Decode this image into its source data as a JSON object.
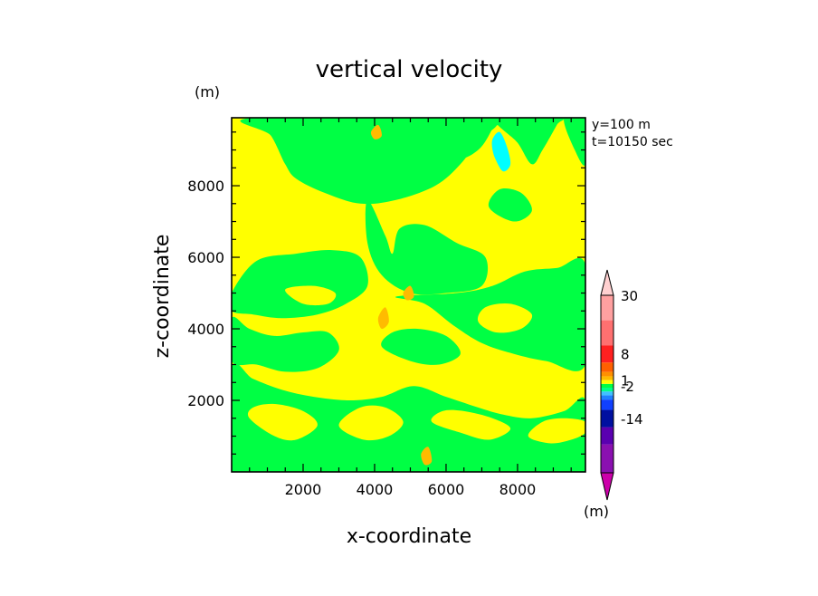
{
  "chart_data": {
    "type": "contour",
    "title": "vertical velocity",
    "xlabel": "x-coordinate",
    "ylabel": "z-coordinate",
    "y_unit": "(m)",
    "colorbar_unit": "(m)",
    "annotations": [
      "y=100 m",
      "t=10150 sec"
    ],
    "xlim": [
      0,
      9900
    ],
    "ylim": [
      0,
      9900
    ],
    "xticks": [
      2000,
      4000,
      6000,
      8000
    ],
    "yticks": [
      2000,
      4000,
      6000,
      8000
    ],
    "background_color": "#ffff00",
    "regions": [
      {
        "color": "#00ff44",
        "points": [
          [
            600,
            9900
          ],
          [
            1100,
            9400
          ],
          [
            1500,
            8600
          ],
          [
            1800,
            8200
          ],
          [
            2600,
            7800
          ],
          [
            3600,
            7500
          ],
          [
            4600,
            7600
          ],
          [
            5700,
            8000
          ],
          [
            6400,
            8600
          ],
          [
            6800,
            9200
          ],
          [
            7000,
            9900
          ]
        ]
      },
      {
        "color": "#00ff44",
        "points": [
          [
            2400,
            9900
          ],
          [
            3500,
            9200
          ],
          [
            5000,
            8800
          ],
          [
            6200,
            8700
          ],
          [
            6900,
            9000
          ],
          [
            7300,
            9600
          ],
          [
            7400,
            9900
          ]
        ]
      },
      {
        "color": "#00ff44",
        "points": [
          [
            3800,
            7600
          ],
          [
            4300,
            6600
          ],
          [
            4500,
            6100
          ],
          [
            4700,
            6800
          ],
          [
            5400,
            6900
          ],
          [
            6300,
            6400
          ],
          [
            7100,
            6000
          ],
          [
            7000,
            5200
          ],
          [
            6000,
            5000
          ],
          [
            5000,
            5000
          ],
          [
            4200,
            5500
          ],
          [
            3800,
            6400
          ]
        ]
      },
      {
        "color": "#00ff44",
        "points": [
          [
            0,
            5000
          ],
          [
            700,
            5900
          ],
          [
            1800,
            6100
          ],
          [
            2800,
            6200
          ],
          [
            3600,
            6000
          ],
          [
            3800,
            5200
          ],
          [
            3200,
            4700
          ],
          [
            2400,
            4400
          ],
          [
            1400,
            4300
          ],
          [
            600,
            4400
          ],
          [
            0,
            4500
          ]
        ]
      },
      {
        "color": "#00ff44",
        "points": [
          [
            0,
            4300
          ],
          [
            500,
            4000
          ],
          [
            1200,
            3800
          ],
          [
            2000,
            3900
          ],
          [
            2700,
            3900
          ],
          [
            3000,
            3400
          ],
          [
            2400,
            2900
          ],
          [
            1500,
            2800
          ],
          [
            700,
            3000
          ],
          [
            0,
            3100
          ]
        ]
      },
      {
        "color": "#00ff44",
        "points": [
          [
            0,
            2900
          ],
          [
            600,
            2600
          ],
          [
            1400,
            2300
          ],
          [
            2300,
            2100
          ],
          [
            3300,
            2000
          ],
          [
            4200,
            2100
          ],
          [
            5100,
            2400
          ],
          [
            6000,
            2100
          ],
          [
            6900,
            1800
          ],
          [
            7600,
            1600
          ],
          [
            8400,
            1500
          ],
          [
            9300,
            1700
          ],
          [
            9900,
            2000
          ],
          [
            9900,
            0
          ],
          [
            0,
            0
          ]
        ]
      },
      {
        "color": "#00ff44",
        "points": [
          [
            4600,
            4900
          ],
          [
            5400,
            4700
          ],
          [
            6200,
            4100
          ],
          [
            7000,
            3600
          ],
          [
            7900,
            3300
          ],
          [
            8800,
            3100
          ],
          [
            9900,
            3000
          ],
          [
            9900,
            5800
          ],
          [
            9100,
            5700
          ],
          [
            8200,
            5600
          ],
          [
            7300,
            5200
          ],
          [
            6300,
            5000
          ]
        ]
      },
      {
        "color": "#00ff44",
        "points": [
          [
            4200,
            3500
          ],
          [
            5000,
            3100
          ],
          [
            5800,
            3000
          ],
          [
            6400,
            3300
          ],
          [
            6000,
            3800
          ],
          [
            5200,
            4000
          ],
          [
            4500,
            3900
          ]
        ]
      },
      {
        "color": "#00ff44",
        "points": [
          [
            7400,
            9900
          ],
          [
            8000,
            9200
          ],
          [
            8400,
            8600
          ],
          [
            8700,
            9000
          ],
          [
            9100,
            9700
          ],
          [
            9200,
            9900
          ]
        ]
      },
      {
        "color": "#00ff44",
        "points": [
          [
            9300,
            9900
          ],
          [
            9600,
            9000
          ],
          [
            9900,
            8600
          ],
          [
            9900,
            9900
          ]
        ]
      },
      {
        "color": "#ffff00",
        "points": [
          [
            500,
            1500
          ],
          [
            1200,
            1000
          ],
          [
            1800,
            900
          ],
          [
            2400,
            1300
          ],
          [
            2000,
            1700
          ],
          [
            1200,
            1900
          ],
          [
            600,
            1800
          ]
        ]
      },
      {
        "color": "#ffff00",
        "points": [
          [
            3000,
            1300
          ],
          [
            3700,
            900
          ],
          [
            4400,
            1000
          ],
          [
            4800,
            1400
          ],
          [
            4300,
            1800
          ],
          [
            3600,
            1800
          ]
        ]
      },
      {
        "color": "#ffff00",
        "points": [
          [
            5600,
            1400
          ],
          [
            6400,
            1100
          ],
          [
            7200,
            900
          ],
          [
            7800,
            1200
          ],
          [
            7300,
            1500
          ],
          [
            6500,
            1700
          ],
          [
            5900,
            1700
          ]
        ]
      },
      {
        "color": "#ffff00",
        "points": [
          [
            8300,
            1000
          ],
          [
            8900,
            800
          ],
          [
            9500,
            900
          ],
          [
            9900,
            1100
          ],
          [
            9900,
            1400
          ],
          [
            9300,
            1500
          ],
          [
            8700,
            1400
          ]
        ]
      },
      {
        "color": "#ffff00",
        "points": [
          [
            1500,
            5100
          ],
          [
            2300,
            5200
          ],
          [
            2900,
            5000
          ],
          [
            2700,
            4700
          ],
          [
            2000,
            4700
          ]
        ]
      },
      {
        "color": "#ffff00",
        "points": [
          [
            6900,
            4200
          ],
          [
            7400,
            3900
          ],
          [
            8100,
            4000
          ],
          [
            8400,
            4400
          ],
          [
            7800,
            4700
          ],
          [
            7100,
            4600
          ]
        ]
      },
      {
        "color": "#ffff00",
        "points": [
          [
            2800,
            7200
          ],
          [
            3200,
            6900
          ],
          [
            3500,
            7200
          ],
          [
            3200,
            7500
          ]
        ]
      },
      {
        "color": "#00ff44",
        "points": [
          [
            3700,
            500
          ],
          [
            4300,
            300
          ],
          [
            5000,
            400
          ],
          [
            5200,
            700
          ],
          [
            4600,
            900
          ],
          [
            4000,
            800
          ]
        ]
      },
      {
        "color": "#00ff44",
        "points": [
          [
            900,
            600
          ],
          [
            1500,
            400
          ],
          [
            2000,
            500
          ],
          [
            1800,
            800
          ],
          [
            1200,
            800
          ]
        ]
      },
      {
        "color": "#00ff44",
        "points": [
          [
            7200,
            7400
          ],
          [
            7900,
            7000
          ],
          [
            8400,
            7300
          ],
          [
            8100,
            7800
          ],
          [
            7500,
            7900
          ]
        ]
      },
      {
        "color": "#00ffff",
        "points": [
          [
            7300,
            9300
          ],
          [
            7500,
            9500
          ],
          [
            7700,
            9100
          ],
          [
            7800,
            8600
          ],
          [
            7600,
            8400
          ],
          [
            7400,
            8700
          ],
          [
            7300,
            9000
          ]
        ]
      },
      {
        "color": "#ffbb00",
        "points": [
          [
            4100,
            4300
          ],
          [
            4300,
            4600
          ],
          [
            4400,
            4200
          ],
          [
            4200,
            4000
          ]
        ]
      },
      {
        "color": "#ffbb00",
        "points": [
          [
            4800,
            5000
          ],
          [
            5000,
            5200
          ],
          [
            5100,
            4900
          ],
          [
            4900,
            4800
          ]
        ]
      },
      {
        "color": "#ffbb00",
        "points": [
          [
            5300,
            500
          ],
          [
            5500,
            700
          ],
          [
            5600,
            300
          ],
          [
            5400,
            200
          ]
        ]
      },
      {
        "color": "#ffbb00",
        "points": [
          [
            3900,
            9500
          ],
          [
            4100,
            9700
          ],
          [
            4200,
            9400
          ],
          [
            4000,
            9300
          ]
        ]
      }
    ],
    "colorbar": {
      "colors": [
        "#cc00aa",
        "#8a10b0",
        "#5a00b0",
        "#0010a0",
        "#1040ff",
        "#2080ff",
        "#40c0ff",
        "#00ff88",
        "#00ff44",
        "#ffff00",
        "#ffbb00",
        "#ff9000",
        "#ff6000",
        "#ff2020",
        "#ff7070",
        "#ffa0a0",
        "#ffd0d0"
      ],
      "weights": [
        1.35,
        1.65,
        1.0,
        1.0,
        0.6,
        0.25,
        0.22,
        0.22,
        0.22,
        0.22,
        0.22,
        0.25,
        0.55,
        1.0,
        1.45,
        1.45,
        1.45
      ],
      "tick_labels": [
        {
          "label": "30",
          "boundary": 16
        },
        {
          "label": "8",
          "boundary": 12.5
        },
        {
          "label": "1",
          "boundary": 10
        },
        {
          "label": "-2",
          "boundary": 7.5
        },
        {
          "label": "-14",
          "boundary": 2.5
        }
      ]
    }
  }
}
